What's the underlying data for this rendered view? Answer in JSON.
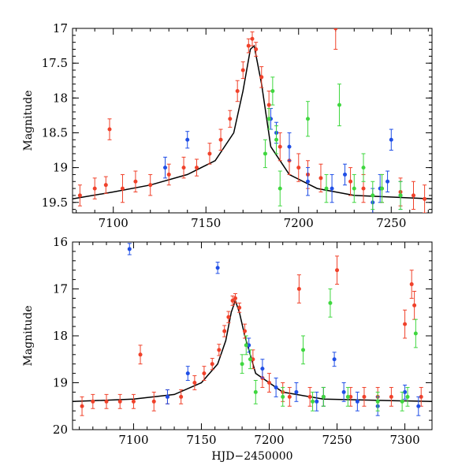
{
  "chart_data": [
    {
      "type": "scatter",
      "title": "",
      "xlabel": "",
      "ylabel": "Magnitude",
      "xlim": [
        7078,
        7272
      ],
      "ylim": [
        17,
        19.65
      ],
      "y_inverted": true,
      "x_ticks": [
        7100,
        7150,
        7200,
        7250
      ],
      "y_ticks": [
        17,
        17.5,
        18,
        18.5,
        19,
        19.5
      ],
      "x_tick_labels": [
        "7100",
        "7150",
        "7200",
        "7250"
      ],
      "y_tick_labels": [
        "17",
        "17.5",
        "18",
        "18.5",
        "19",
        "19.5"
      ],
      "colors": {
        "red": "#f0412a",
        "blue": "#1f4ee6",
        "green": "#3fd73f",
        "model": "#000000"
      },
      "model": {
        "name": "model light curve",
        "x": [
          7078,
          7100,
          7120,
          7140,
          7155,
          7165,
          7170,
          7174,
          7176,
          7180,
          7185,
          7195,
          7210,
          7230,
          7272
        ],
        "y": [
          19.45,
          19.35,
          19.25,
          19.1,
          18.9,
          18.5,
          17.9,
          17.3,
          17.25,
          17.8,
          18.7,
          19.1,
          19.3,
          19.4,
          19.45
        ]
      },
      "series": [
        {
          "name": "red",
          "x": [
            7082,
            7090,
            7096,
            7098,
            7105,
            7112,
            7120,
            7130,
            7138,
            7145,
            7152,
            7158,
            7163,
            7167,
            7170,
            7173,
            7175,
            7177,
            7180,
            7184,
            7190,
            7195,
            7200,
            7205,
            7212,
            7220,
            7228,
            7235,
            7245,
            7255,
            7262,
            7268
          ],
          "y": [
            19.4,
            19.3,
            19.25,
            18.45,
            19.3,
            19.2,
            19.25,
            19.1,
            19.0,
            19.0,
            18.8,
            18.6,
            18.3,
            17.9,
            17.6,
            17.25,
            17.15,
            17.3,
            17.7,
            18.1,
            18.7,
            18.9,
            19.0,
            19.1,
            19.15,
            17.0,
            19.2,
            19.3,
            19.3,
            19.35,
            19.4,
            19.45
          ],
          "yerr": [
            0.15,
            0.15,
            0.12,
            0.15,
            0.2,
            0.15,
            0.15,
            0.15,
            0.15,
            0.12,
            0.15,
            0.15,
            0.12,
            0.15,
            0.12,
            0.1,
            0.1,
            0.1,
            0.15,
            0.2,
            0.2,
            0.2,
            0.2,
            0.2,
            0.2,
            0.3,
            0.2,
            0.2,
            0.2,
            0.2,
            0.2,
            0.2
          ]
        },
        {
          "name": "blue",
          "x": [
            7128,
            7140,
            7185,
            7188,
            7195,
            7205,
            7218,
            7225,
            7240,
            7244,
            7248,
            7250,
            7255
          ],
          "y": [
            19.0,
            18.6,
            18.3,
            18.5,
            18.7,
            19.2,
            19.3,
            19.1,
            19.5,
            19.3,
            19.2,
            18.6,
            19.4
          ],
          "yerr": [
            0.15,
            0.12,
            0.15,
            0.15,
            0.2,
            0.2,
            0.2,
            0.15,
            0.2,
            0.2,
            0.15,
            0.15,
            0.2
          ]
        },
        {
          "name": "green",
          "x": [
            7182,
            7184,
            7186,
            7188,
            7190,
            7205,
            7215,
            7222,
            7230,
            7235,
            7240,
            7245,
            7255
          ],
          "y": [
            18.8,
            18.3,
            17.9,
            18.6,
            19.3,
            18.3,
            19.3,
            18.1,
            19.3,
            19.0,
            19.4,
            19.3,
            19.4
          ],
          "yerr": [
            0.2,
            0.15,
            0.2,
            0.2,
            0.25,
            0.25,
            0.2,
            0.3,
            0.2,
            0.2,
            0.2,
            0.2,
            0.2
          ]
        }
      ]
    },
    {
      "type": "scatter",
      "title": "",
      "xlabel": "HJD−2450000",
      "ylabel": "Magnitude",
      "xlim": [
        7055,
        7320
      ],
      "ylim": [
        16,
        20
      ],
      "y_inverted": true,
      "x_ticks": [
        7100,
        7150,
        7200,
        7250,
        7300
      ],
      "y_ticks": [
        16,
        17,
        18,
        19,
        20
      ],
      "x_tick_labels": [
        "7100",
        "7150",
        "7200",
        "7250",
        "7300"
      ],
      "y_tick_labels": [
        "16",
        "17",
        "18",
        "19",
        "20"
      ],
      "colors": {
        "red": "#f0412a",
        "blue": "#1f4ee6",
        "green": "#3fd73f",
        "model": "#000000"
      },
      "model": {
        "name": "model light curve",
        "x": [
          7055,
          7100,
          7130,
          7150,
          7162,
          7168,
          7172,
          7175,
          7178,
          7182,
          7190,
          7210,
          7240,
          7320
        ],
        "y": [
          19.4,
          19.35,
          19.25,
          19.0,
          18.6,
          18.1,
          17.5,
          17.25,
          17.5,
          18.0,
          18.8,
          19.2,
          19.35,
          19.4
        ]
      },
      "series": [
        {
          "name": "red",
          "x": [
            7062,
            7070,
            7080,
            7090,
            7100,
            7105,
            7115,
            7125,
            7135,
            7145,
            7152,
            7158,
            7163,
            7167,
            7170,
            7173,
            7175,
            7178,
            7182,
            7188,
            7195,
            7200,
            7210,
            7215,
            7222,
            7230,
            7240,
            7250,
            7260,
            7270,
            7280,
            7290,
            7300,
            7305,
            7307,
            7312
          ],
          "y": [
            19.5,
            19.4,
            19.4,
            19.4,
            19.4,
            18.4,
            19.4,
            19.3,
            19.3,
            19.0,
            18.8,
            18.6,
            18.3,
            17.9,
            17.6,
            17.25,
            17.2,
            17.4,
            17.9,
            18.5,
            18.9,
            19.0,
            19.2,
            19.3,
            17.0,
            19.3,
            19.3,
            16.6,
            19.3,
            19.3,
            19.3,
            19.3,
            17.75,
            16.9,
            17.35,
            19.3
          ],
          "yerr": [
            0.2,
            0.15,
            0.15,
            0.15,
            0.15,
            0.2,
            0.2,
            0.15,
            0.15,
            0.15,
            0.15,
            0.12,
            0.12,
            0.12,
            0.12,
            0.1,
            0.1,
            0.1,
            0.15,
            0.2,
            0.2,
            0.2,
            0.2,
            0.2,
            0.3,
            0.2,
            0.2,
            0.3,
            0.2,
            0.2,
            0.2,
            0.2,
            0.3,
            0.3,
            0.3,
            0.2
          ]
        },
        {
          "name": "blue",
          "x": [
            7097,
            7125,
            7140,
            7162,
            7185,
            7195,
            7205,
            7220,
            7235,
            7240,
            7248,
            7255,
            7265,
            7280,
            7300,
            7310
          ],
          "y": [
            16.15,
            19.3,
            18.8,
            16.55,
            18.2,
            18.7,
            19.1,
            19.2,
            19.4,
            19.3,
            18.5,
            19.2,
            19.4,
            19.5,
            19.2,
            19.5
          ],
          "yerr": [
            0.12,
            0.15,
            0.15,
            0.12,
            0.15,
            0.2,
            0.2,
            0.2,
            0.2,
            0.2,
            0.15,
            0.2,
            0.2,
            0.2,
            0.15,
            0.2
          ]
        },
        {
          "name": "green",
          "x": [
            7180,
            7183,
            7186,
            7190,
            7210,
            7225,
            7232,
            7240,
            7245,
            7258,
            7280,
            7298,
            7302,
            7308
          ],
          "y": [
            18.6,
            18.2,
            18.5,
            19.2,
            19.3,
            18.3,
            19.4,
            19.3,
            17.3,
            19.3,
            19.4,
            19.4,
            19.3,
            17.95
          ],
          "yerr": [
            0.2,
            0.2,
            0.2,
            0.25,
            0.2,
            0.3,
            0.2,
            0.2,
            0.3,
            0.2,
            0.2,
            0.2,
            0.2,
            0.3
          ]
        }
      ]
    }
  ]
}
